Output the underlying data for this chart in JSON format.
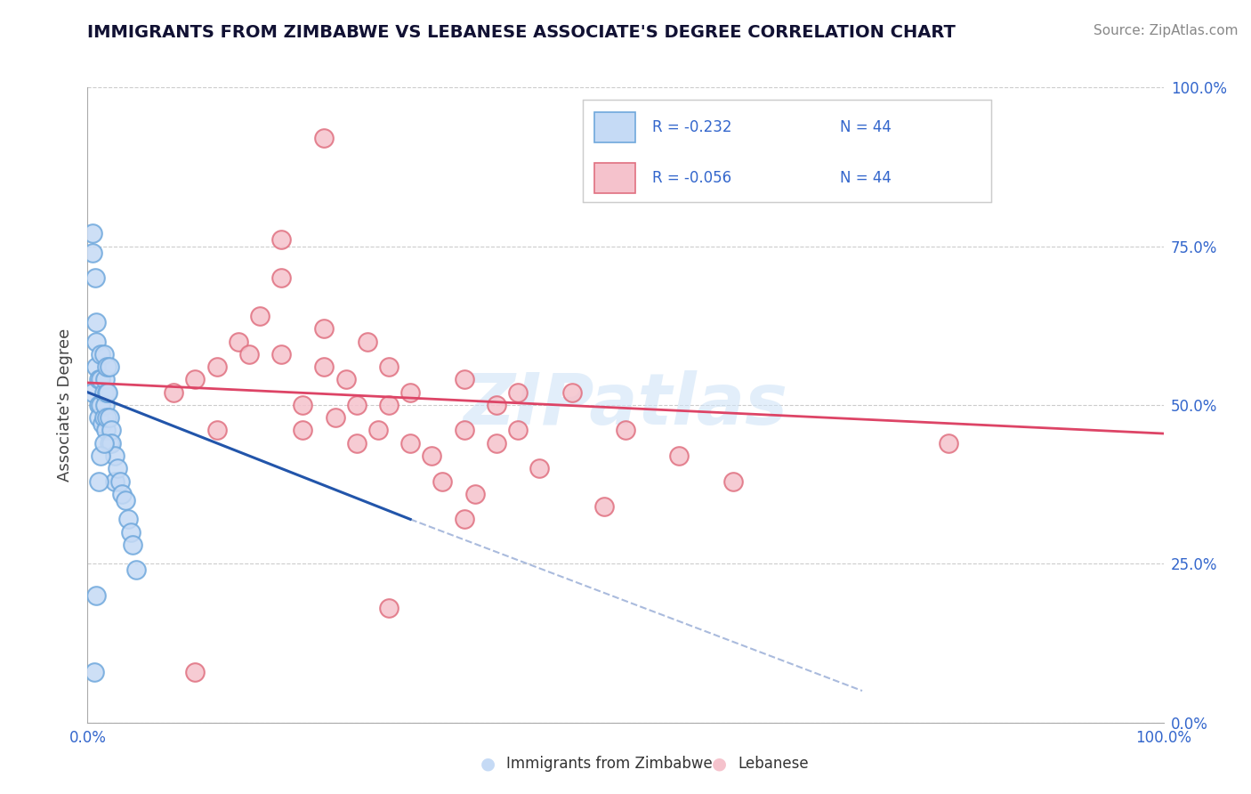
{
  "title": "IMMIGRANTS FROM ZIMBABWE VS LEBANESE ASSOCIATE'S DEGREE CORRELATION CHART",
  "source": "Source: ZipAtlas.com",
  "ylabel": "Associate's Degree",
  "xlim": [
    0.0,
    1.0
  ],
  "ylim": [
    0.0,
    1.0
  ],
  "blue_scatter_x": [
    0.005,
    0.005,
    0.005,
    0.007,
    0.008,
    0.008,
    0.008,
    0.01,
    0.01,
    0.01,
    0.012,
    0.012,
    0.012,
    0.014,
    0.015,
    0.015,
    0.015,
    0.016,
    0.016,
    0.017,
    0.018,
    0.018,
    0.019,
    0.02,
    0.02,
    0.022,
    0.022,
    0.025,
    0.025,
    0.028,
    0.03,
    0.032,
    0.035,
    0.038,
    0.04,
    0.042,
    0.045,
    0.012,
    0.018,
    0.02,
    0.015,
    0.01,
    0.008,
    0.006
  ],
  "blue_scatter_y": [
    0.77,
    0.74,
    0.52,
    0.7,
    0.63,
    0.6,
    0.56,
    0.54,
    0.5,
    0.48,
    0.58,
    0.54,
    0.5,
    0.47,
    0.58,
    0.52,
    0.48,
    0.54,
    0.5,
    0.46,
    0.52,
    0.48,
    0.52,
    0.48,
    0.44,
    0.46,
    0.44,
    0.42,
    0.38,
    0.4,
    0.38,
    0.36,
    0.35,
    0.32,
    0.3,
    0.28,
    0.24,
    0.42,
    0.56,
    0.56,
    0.44,
    0.38,
    0.2,
    0.08
  ],
  "pink_scatter_x": [
    0.08,
    0.1,
    0.12,
    0.12,
    0.14,
    0.15,
    0.16,
    0.18,
    0.18,
    0.2,
    0.2,
    0.22,
    0.22,
    0.23,
    0.24,
    0.25,
    0.25,
    0.26,
    0.27,
    0.28,
    0.28,
    0.3,
    0.3,
    0.32,
    0.33,
    0.35,
    0.35,
    0.36,
    0.38,
    0.38,
    0.4,
    0.4,
    0.42,
    0.45,
    0.48,
    0.5,
    0.55,
    0.6,
    0.22,
    0.18,
    0.8,
    0.35,
    0.28,
    0.1
  ],
  "pink_scatter_y": [
    0.52,
    0.54,
    0.46,
    0.56,
    0.6,
    0.58,
    0.64,
    0.7,
    0.58,
    0.5,
    0.46,
    0.62,
    0.56,
    0.48,
    0.54,
    0.44,
    0.5,
    0.6,
    0.46,
    0.5,
    0.56,
    0.52,
    0.44,
    0.42,
    0.38,
    0.54,
    0.46,
    0.36,
    0.5,
    0.44,
    0.52,
    0.46,
    0.4,
    0.52,
    0.34,
    0.46,
    0.42,
    0.38,
    0.92,
    0.76,
    0.44,
    0.32,
    0.18,
    0.08
  ],
  "blue_line_x0": 0.0,
  "blue_line_y0": 0.52,
  "blue_line_x1": 0.3,
  "blue_line_y1": 0.32,
  "pink_line_x0": 0.0,
  "pink_line_y0": 0.535,
  "pink_line_x1": 1.0,
  "pink_line_y1": 0.455,
  "dashed_line_x0": 0.3,
  "dashed_line_y0": 0.32,
  "dashed_line_x1": 0.72,
  "dashed_line_y1": 0.05,
  "watermark": "ZIPatlas",
  "blue_face": "#c5daf5",
  "blue_edge": "#6fa8dc",
  "pink_face": "#f5c2cc",
  "pink_edge": "#e07080",
  "blue_line_color": "#2255aa",
  "pink_line_color": "#dd4466",
  "dashed_color": "#aabbdd",
  "legend_label1": "Immigrants from Zimbabwe",
  "legend_label2": "Lebanese",
  "r1": "-0.232",
  "n1": "44",
  "r2": "-0.056",
  "n2": "44"
}
